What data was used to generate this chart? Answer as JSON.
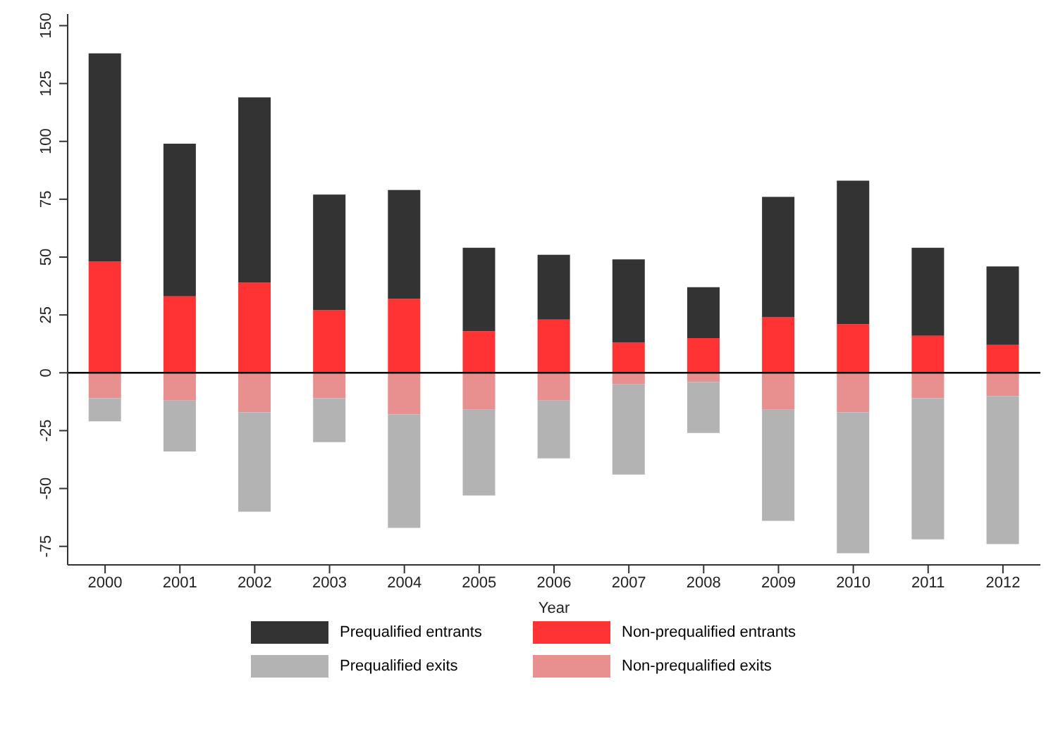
{
  "chart_data": {
    "type": "bar",
    "xlabel": "Year",
    "stacked": true,
    "categories": [
      "2000",
      "2001",
      "2002",
      "2003",
      "2004",
      "2005",
      "2006",
      "2007",
      "2008",
      "2009",
      "2010",
      "2011",
      "2012"
    ],
    "series": [
      {
        "name": "Non-prequalified entrants",
        "color": "#ff3333",
        "values": [
          48,
          33,
          39,
          27,
          32,
          18,
          23,
          13,
          15,
          24,
          21,
          16,
          12
        ]
      },
      {
        "name": "Prequalified entrants",
        "color": "#333333",
        "values": [
          90,
          66,
          80,
          50,
          47,
          36,
          28,
          36,
          22,
          52,
          62,
          38,
          34
        ]
      },
      {
        "name": "Non-prequalified exits",
        "color": "#e88f8f",
        "values": [
          -11,
          -12,
          -17,
          -11,
          -18,
          -16,
          -12,
          -5,
          -4,
          -16,
          -17,
          -11,
          -10
        ]
      },
      {
        "name": "Prequalified exits",
        "color": "#b3b3b3",
        "values": [
          -10,
          -22,
          -43,
          -19,
          -49,
          -37,
          -25,
          -39,
          -22,
          -48,
          -61,
          -61,
          -64
        ]
      }
    ],
    "ylim": [
      -83,
      155
    ],
    "yticks": [
      -75,
      -50,
      -25,
      0,
      25,
      50,
      75,
      100,
      125,
      150
    ],
    "ref_lines": [
      {
        "axis": "y",
        "value": 0,
        "color": "#000000"
      }
    ],
    "grid": false,
    "legend": "bottom"
  }
}
